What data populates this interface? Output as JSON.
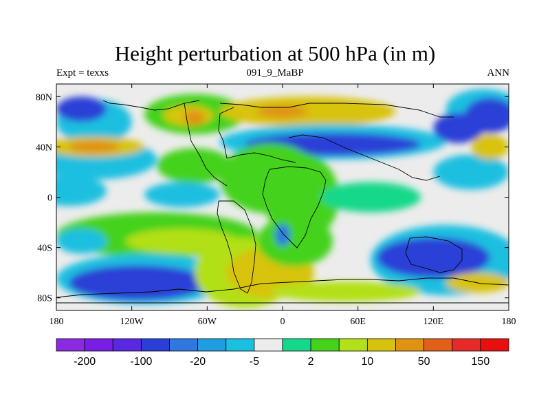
{
  "title": "Height perturbation at 500 hPa (in m)",
  "subtitle_left": "Expt = texxs",
  "subtitle_center": "091_9_MaBP",
  "subtitle_right": "ANN",
  "lat_ticks": [
    {
      "label": "80N",
      "value": 80
    },
    {
      "label": "40N",
      "value": 40
    },
    {
      "label": "0",
      "value": 0
    },
    {
      "label": "40S",
      "value": -40
    },
    {
      "label": "80S",
      "value": -80
    }
  ],
  "lon_ticks": [
    {
      "label": "180",
      "value": -180
    },
    {
      "label": "120W",
      "value": -120
    },
    {
      "label": "60W",
      "value": -60
    },
    {
      "label": "0",
      "value": 0
    },
    {
      "label": "60E",
      "value": 60
    },
    {
      "label": "120E",
      "value": 120
    },
    {
      "label": "180",
      "value": 180
    }
  ],
  "colorbar": {
    "colors": [
      "#8a2be2",
      "#7a1ee6",
      "#5a28e0",
      "#2a3fd6",
      "#2f78e0",
      "#1e9ee0",
      "#1bbfe0",
      "#ececec",
      "#16d88a",
      "#44d21a",
      "#b2e019",
      "#d8c30c",
      "#e09312",
      "#e0601a",
      "#e62a2a",
      "#e80f0f"
    ],
    "labels": [
      {
        "text": "-200",
        "boundary": 1
      },
      {
        "text": "-100",
        "boundary": 3
      },
      {
        "text": "-20",
        "boundary": 5
      },
      {
        "text": "-5",
        "boundary": 7
      },
      {
        "text": "2",
        "boundary": 9
      },
      {
        "text": "10",
        "boundary": 11
      },
      {
        "text": "50",
        "boundary": 13
      },
      {
        "text": "150",
        "boundary": 15
      }
    ]
  },
  "map_features": {
    "background_color": "#ececec",
    "regions": [
      {
        "color": "#1bbfe0",
        "lon": -150,
        "lat": 60,
        "rx": 30,
        "ry": 18
      },
      {
        "color": "#2a3fd6",
        "lon": -160,
        "lat": 70,
        "rx": 20,
        "ry": 10
      },
      {
        "color": "#44d21a",
        "lon": -70,
        "lat": 66,
        "rx": 40,
        "ry": 16
      },
      {
        "color": "#d8c30c",
        "lon": -75,
        "lat": 65,
        "rx": 20,
        "ry": 8
      },
      {
        "color": "#e09312",
        "lon": -70,
        "lat": 63,
        "rx": 8,
        "ry": 6
      },
      {
        "color": "#d8c30c",
        "lon": 20,
        "lat": 68,
        "rx": 70,
        "ry": 12
      },
      {
        "color": "#e09312",
        "lon": 0,
        "lat": 68,
        "rx": 20,
        "ry": 5
      },
      {
        "color": "#1bbfe0",
        "lon": 40,
        "lat": 44,
        "rx": 90,
        "ry": 14
      },
      {
        "color": "#2a3fd6",
        "lon": 40,
        "lat": 42,
        "rx": 70,
        "ry": 9
      },
      {
        "color": "#1bbfe0",
        "lon": -150,
        "lat": 30,
        "rx": 50,
        "ry": 16
      },
      {
        "color": "#d8c30c",
        "lon": -150,
        "lat": 40,
        "rx": 40,
        "ry": 8
      },
      {
        "color": "#e09312",
        "lon": -150,
        "lat": 40,
        "rx": 20,
        "ry": 5
      },
      {
        "color": "#44d21a",
        "lon": -70,
        "lat": 25,
        "rx": 30,
        "ry": 14
      },
      {
        "color": "#1bbfe0",
        "lon": -170,
        "lat": 5,
        "rx": 30,
        "ry": 12
      },
      {
        "color": "#1bbfe0",
        "lon": -80,
        "lat": 2,
        "rx": 30,
        "ry": 10
      },
      {
        "color": "#44d21a",
        "lon": -10,
        "lat": 15,
        "rx": 40,
        "ry": 28
      },
      {
        "color": "#44d21a",
        "lon": 15,
        "lat": 0,
        "rx": 30,
        "ry": 35
      },
      {
        "color": "#16d88a",
        "lon": 70,
        "lat": 0,
        "rx": 40,
        "ry": 12
      },
      {
        "color": "#1bbfe0",
        "lon": 150,
        "lat": 20,
        "rx": 30,
        "ry": 14
      },
      {
        "color": "#d8c30c",
        "lon": 165,
        "lat": 40,
        "rx": 15,
        "ry": 10
      },
      {
        "color": "#1bbfe0",
        "lon": 160,
        "lat": 70,
        "rx": 30,
        "ry": 16
      },
      {
        "color": "#2a3fd6",
        "lon": 165,
        "lat": 65,
        "rx": 20,
        "ry": 14
      },
      {
        "color": "#2a3fd6",
        "lon": 140,
        "lat": 55,
        "rx": 20,
        "ry": 12
      },
      {
        "color": "#44d21a",
        "lon": -100,
        "lat": -30,
        "rx": 80,
        "ry": 18
      },
      {
        "color": "#b2e019",
        "lon": -80,
        "lat": -35,
        "rx": 45,
        "ry": 10
      },
      {
        "color": "#1bbfe0",
        "lon": -160,
        "lat": -35,
        "rx": 20,
        "ry": 10
      },
      {
        "color": "#1bbfe0",
        "lon": -110,
        "lat": -65,
        "rx": 70,
        "ry": 20
      },
      {
        "color": "#2a3fd6",
        "lon": -115,
        "lat": -68,
        "rx": 55,
        "ry": 14
      },
      {
        "color": "#b2e019",
        "lon": -30,
        "lat": -60,
        "rx": 40,
        "ry": 28
      },
      {
        "color": "#d8c30c",
        "lon": -10,
        "lat": -60,
        "rx": 35,
        "ry": 20
      },
      {
        "color": "#44d21a",
        "lon": 10,
        "lat": -35,
        "rx": 30,
        "ry": 20
      },
      {
        "color": "#2f78e0",
        "lon": 0,
        "lat": -30,
        "rx": 6,
        "ry": 9
      },
      {
        "color": "#1bbfe0",
        "lon": 130,
        "lat": -50,
        "rx": 60,
        "ry": 28
      },
      {
        "color": "#2a3fd6",
        "lon": 120,
        "lat": -48,
        "rx": 45,
        "ry": 16
      },
      {
        "color": "#d8c30c",
        "lon": 155,
        "lat": -68,
        "rx": 25,
        "ry": 8
      },
      {
        "color": "#b2e019",
        "lon": 50,
        "lat": -75,
        "rx": 60,
        "ry": 8
      }
    ]
  }
}
